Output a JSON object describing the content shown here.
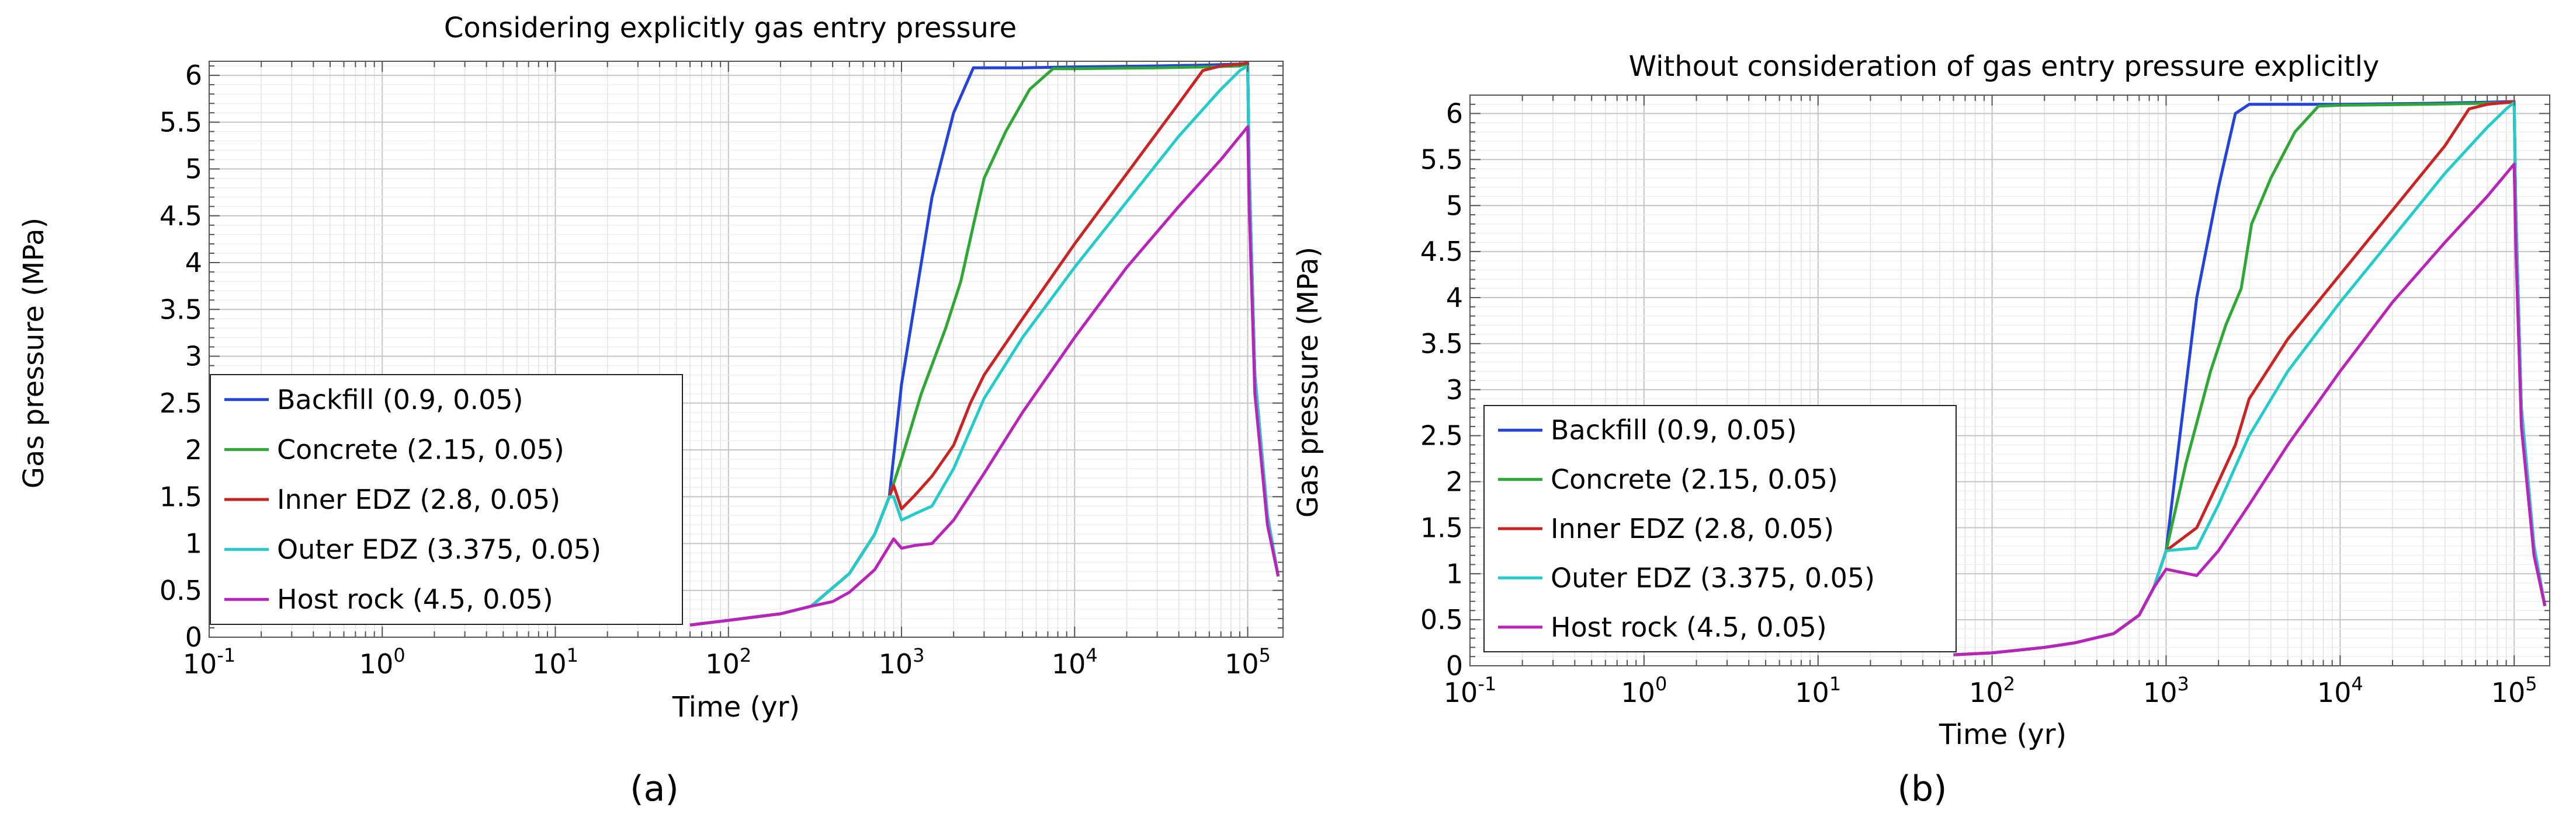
{
  "chart_data": [
    {
      "type": "line",
      "panel_label": "(a)",
      "title": "Considering explicitly gas entry pressure",
      "xlabel": "Time (yr)",
      "ylabel": "Gas pressure (MPa)",
      "xscale": "log",
      "xlim": [
        0.1,
        160000
      ],
      "ylim": [
        0,
        6.15
      ],
      "grid": true,
      "legend_position": "lower-left",
      "x_tick_labels": [
        {
          "base": "10",
          "exp": "-1",
          "value": 0.1
        },
        {
          "base": "10",
          "exp": "0",
          "value": 1
        },
        {
          "base": "10",
          "exp": "1",
          "value": 10
        },
        {
          "base": "10",
          "exp": "2",
          "value": 100
        },
        {
          "base": "10",
          "exp": "3",
          "value": 1000
        },
        {
          "base": "10",
          "exp": "4",
          "value": 10000
        },
        {
          "base": "10",
          "exp": "5",
          "value": 100000
        }
      ],
      "y_ticks": [
        0,
        0.5,
        1,
        1.5,
        2,
        2.5,
        3,
        3.5,
        4,
        4.5,
        5,
        5.5,
        6
      ],
      "y_tick_labels": [
        "0",
        "0.5",
        "1",
        "1.5",
        "2",
        "2.5",
        "3",
        "3.5",
        "4",
        "4.5",
        "5",
        "5.5",
        "6"
      ],
      "series": [
        {
          "name": "Backfill (0.9, 0.05)",
          "color": "#2244dd",
          "x": [
            60,
            100,
            200,
            300,
            500,
            700,
            850,
            1000,
            1200,
            1500,
            2000,
            2600,
            3000,
            5000,
            10000,
            30000,
            60000,
            90000,
            100000,
            102000,
            110000,
            130000,
            150000
          ],
          "y": [
            0.13,
            0.18,
            0.25,
            0.33,
            0.68,
            1.1,
            1.5,
            2.7,
            3.6,
            4.7,
            5.6,
            6.08,
            6.08,
            6.08,
            6.09,
            6.1,
            6.11,
            6.12,
            6.13,
            5.0,
            2.8,
            1.3,
            0.65
          ]
        },
        {
          "name": "Concrete (2.15, 0.05)",
          "color": "#2da832",
          "x": [
            60,
            100,
            200,
            300,
            500,
            700,
            850,
            1000,
            1300,
            1800,
            2200,
            2600,
            3000,
            4000,
            5500,
            7500,
            10000,
            30000,
            60000,
            90000,
            100000,
            102000,
            110000,
            130000,
            150000
          ],
          "y": [
            0.13,
            0.18,
            0.25,
            0.33,
            0.68,
            1.1,
            1.5,
            1.9,
            2.6,
            3.3,
            3.8,
            4.4,
            4.9,
            5.4,
            5.85,
            6.07,
            6.07,
            6.08,
            6.09,
            6.1,
            6.12,
            5.0,
            2.8,
            1.3,
            0.65
          ]
        },
        {
          "name": "Inner EDZ (2.8, 0.05)",
          "color": "#cc2222",
          "x": [
            60,
            100,
            200,
            300,
            500,
            700,
            850,
            900,
            1000,
            1200,
            1500,
            2000,
            2500,
            3000,
            5000,
            10000,
            20000,
            40000,
            55000,
            70000,
            90000,
            100000,
            102000,
            110000,
            130000,
            150000
          ],
          "y": [
            0.13,
            0.18,
            0.25,
            0.33,
            0.68,
            1.1,
            1.5,
            1.62,
            1.37,
            1.52,
            1.72,
            2.05,
            2.5,
            2.8,
            3.4,
            4.2,
            4.95,
            5.7,
            6.05,
            6.1,
            6.12,
            6.13,
            5.0,
            2.8,
            1.3,
            0.65
          ]
        },
        {
          "name": "Outer EDZ (3.375, 0.05)",
          "color": "#22cccc",
          "x": [
            60,
            100,
            200,
            300,
            500,
            700,
            850,
            900,
            1000,
            1200,
            1500,
            2000,
            3000,
            5000,
            10000,
            20000,
            40000,
            70000,
            90000,
            100000,
            102000,
            110000,
            130000,
            150000
          ],
          "y": [
            0.13,
            0.18,
            0.25,
            0.33,
            0.68,
            1.1,
            1.5,
            1.5,
            1.25,
            1.32,
            1.4,
            1.8,
            2.55,
            3.2,
            3.95,
            4.65,
            5.35,
            5.85,
            6.05,
            6.1,
            5.0,
            2.8,
            1.3,
            0.65
          ]
        },
        {
          "name": "Host rock (4.5, 0.05)",
          "color": "#bb22bb",
          "x": [
            60,
            100,
            200,
            300,
            400,
            500,
            700,
            900,
            1000,
            1200,
            1500,
            2000,
            3000,
            5000,
            10000,
            20000,
            40000,
            70000,
            100000,
            102000,
            110000,
            130000,
            150000
          ],
          "y": [
            0.13,
            0.18,
            0.25,
            0.33,
            0.38,
            0.48,
            0.72,
            1.05,
            0.95,
            0.98,
            1.0,
            1.25,
            1.75,
            2.4,
            3.2,
            3.95,
            4.6,
            5.1,
            5.45,
            4.6,
            2.6,
            1.2,
            0.65
          ]
        }
      ]
    },
    {
      "type": "line",
      "panel_label": "(b)",
      "title": "Without consideration of gas entry pressure explicitly",
      "xlabel": "Time (yr)",
      "ylabel": "Gas pressure (MPa)",
      "xscale": "log",
      "xlim": [
        0.1,
        160000
      ],
      "ylim": [
        0,
        6.2
      ],
      "grid": true,
      "legend_position": "lower-left",
      "x_tick_labels": [
        {
          "base": "10",
          "exp": "-1",
          "value": 0.1
        },
        {
          "base": "10",
          "exp": "0",
          "value": 1
        },
        {
          "base": "10",
          "exp": "1",
          "value": 10
        },
        {
          "base": "10",
          "exp": "2",
          "value": 100
        },
        {
          "base": "10",
          "exp": "3",
          "value": 1000
        },
        {
          "base": "10",
          "exp": "4",
          "value": 10000
        },
        {
          "base": "10",
          "exp": "5",
          "value": 100000
        }
      ],
      "y_ticks": [
        0,
        0.5,
        1,
        1.5,
        2,
        2.5,
        3,
        3.5,
        4,
        4.5,
        5,
        5.5,
        6
      ],
      "y_tick_labels": [
        "0",
        "0.5",
        "1",
        "1.5",
        "2",
        "2.5",
        "3",
        "3.5",
        "4",
        "4.5",
        "5",
        "5.5",
        "6"
      ],
      "series": [
        {
          "name": "Backfill (0.9, 0.05)",
          "color": "#2244dd",
          "x": [
            60,
            100,
            200,
            300,
            500,
            700,
            850,
            1000,
            1200,
            1500,
            2000,
            2500,
            3000,
            5000,
            10000,
            30000,
            60000,
            100000,
            102000,
            110000,
            130000,
            150000
          ],
          "y": [
            0.12,
            0.14,
            0.2,
            0.25,
            0.35,
            0.55,
            0.85,
            1.25,
            2.5,
            4.0,
            5.2,
            6.0,
            6.1,
            6.1,
            6.1,
            6.11,
            6.12,
            6.13,
            5.0,
            2.8,
            1.3,
            0.65
          ]
        },
        {
          "name": "Concrete (2.15, 0.05)",
          "color": "#2da832",
          "x": [
            60,
            100,
            200,
            300,
            500,
            700,
            850,
            1000,
            1300,
            1800,
            2200,
            2700,
            3100,
            4000,
            5500,
            7500,
            10000,
            30000,
            60000,
            100000,
            102000,
            110000,
            130000,
            150000
          ],
          "y": [
            0.12,
            0.14,
            0.2,
            0.25,
            0.35,
            0.55,
            0.85,
            1.25,
            2.2,
            3.2,
            3.7,
            4.1,
            4.8,
            5.3,
            5.8,
            6.08,
            6.09,
            6.1,
            6.11,
            6.12,
            5.0,
            2.8,
            1.3,
            0.65
          ]
        },
        {
          "name": "Inner EDZ (2.8, 0.05)",
          "color": "#cc2222",
          "x": [
            60,
            100,
            200,
            300,
            500,
            700,
            850,
            1000,
            1500,
            2000,
            2500,
            3000,
            5000,
            10000,
            20000,
            40000,
            55000,
            70000,
            90000,
            100000,
            102000,
            110000,
            130000,
            150000
          ],
          "y": [
            0.12,
            0.14,
            0.2,
            0.25,
            0.35,
            0.55,
            0.85,
            1.25,
            1.5,
            2.0,
            2.4,
            2.9,
            3.55,
            4.25,
            4.95,
            5.65,
            6.05,
            6.1,
            6.12,
            6.13,
            5.0,
            2.8,
            1.3,
            0.65
          ]
        },
        {
          "name": "Outer EDZ (3.375, 0.05)",
          "color": "#22cccc",
          "x": [
            60,
            100,
            200,
            300,
            500,
            700,
            850,
            1000,
            1500,
            2000,
            3000,
            5000,
            10000,
            20000,
            40000,
            70000,
            90000,
            100000,
            102000,
            110000,
            130000,
            150000
          ],
          "y": [
            0.12,
            0.14,
            0.2,
            0.25,
            0.35,
            0.55,
            0.85,
            1.25,
            1.28,
            1.75,
            2.5,
            3.2,
            3.95,
            4.65,
            5.35,
            5.85,
            6.05,
            6.12,
            5.0,
            2.8,
            1.3,
            0.65
          ]
        },
        {
          "name": "Host rock (4.5, 0.05)",
          "color": "#bb22bb",
          "x": [
            60,
            100,
            200,
            300,
            500,
            700,
            850,
            1000,
            1500,
            2000,
            3000,
            5000,
            10000,
            20000,
            40000,
            70000,
            100000,
            102000,
            110000,
            130000,
            150000
          ],
          "y": [
            0.12,
            0.14,
            0.2,
            0.25,
            0.35,
            0.55,
            0.85,
            1.05,
            0.98,
            1.25,
            1.75,
            2.4,
            3.2,
            3.95,
            4.6,
            5.1,
            5.45,
            4.6,
            2.6,
            1.2,
            0.65
          ]
        }
      ]
    }
  ]
}
